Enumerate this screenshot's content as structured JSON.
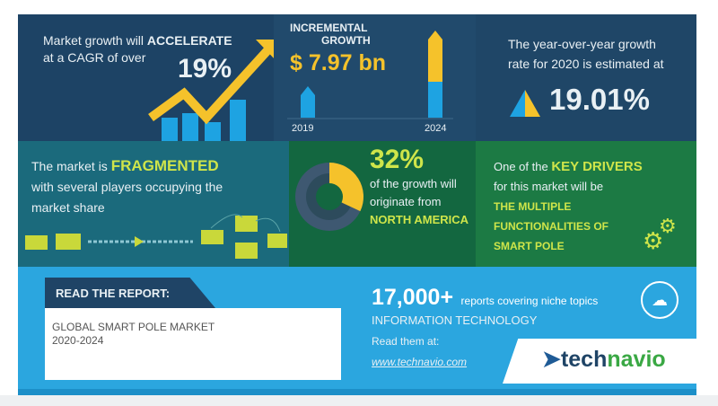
{
  "cagr": {
    "line1_prefix": "Market growth will ",
    "line1_emphasis": "ACCELERATE",
    "line2": "at a CAGR of over",
    "value": "19%"
  },
  "incremental": {
    "title_line1": "INCREMENTAL",
    "title_line2": "GROWTH",
    "value": "$ 7.97 bn",
    "year_start": "2019",
    "year_end": "2024"
  },
  "yoy": {
    "line1": "The year-over-year growth",
    "line2": "rate for 2020 is estimated at",
    "value": "19.01%"
  },
  "fragmented": {
    "line1_prefix": "The market is ",
    "line1_emphasis": "FRAGMENTED",
    "line2": "with several players occupying the",
    "line3": "market share"
  },
  "region": {
    "value": "32%",
    "line1": "of the growth will",
    "line2": "originate from",
    "region": "NORTH AMERICA",
    "share": 0.32
  },
  "drivers": {
    "line1_prefix": "One of the ",
    "line1_emphasis": "KEY DRIVERS",
    "line2": "for this market will be",
    "line3": "THE MULTIPLE",
    "line4": "FUNCTIONALITIES OF",
    "line5": "SMART POLE"
  },
  "report": {
    "label": "READ THE REPORT:",
    "title_line1": "GLOBAL SMART POLE MARKET",
    "title_line2": "2020-2024"
  },
  "promo": {
    "count": "17,000+",
    "count_text": "reports covering niche topics",
    "category": "INFORMATION TECHNOLOGY",
    "read_label": "Read them at:",
    "url": "www.technavio.com"
  },
  "brand": {
    "logo_part1": "tech",
    "logo_part2": "navio"
  },
  "colors": {
    "navy": "#1e4466",
    "teal": "#1b6a7c",
    "green": "#136740",
    "blue": "#2ba6df",
    "yellow": "#f5c22b",
    "lime": "#cfe54a"
  }
}
